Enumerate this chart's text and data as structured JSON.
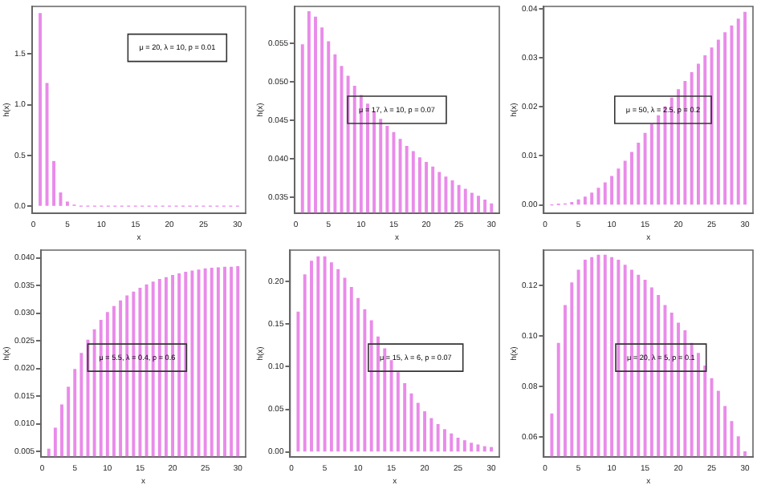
{
  "chart_data": [
    {
      "type": "bar",
      "xlabel": "x",
      "ylabel": "h(x)",
      "x": [
        1,
        2,
        3,
        4,
        5,
        6,
        7,
        8,
        9,
        10,
        11,
        12,
        13,
        14,
        15,
        16,
        17,
        18,
        19,
        20,
        21,
        22,
        23,
        24,
        25,
        26,
        27,
        28,
        29,
        30
      ],
      "series": [
        {
          "color": "#e98be9",
          "values": [
            1.9,
            1.21,
            0.44,
            0.13,
            0.04,
            0.01,
            0,
            0,
            0,
            0,
            0,
            0,
            0,
            0,
            0,
            0,
            0,
            0,
            0,
            0,
            0,
            0,
            0,
            0,
            0,
            0,
            0,
            0,
            0,
            0
          ]
        }
      ],
      "xlim": [
        -0.2,
        31.2
      ],
      "xticks": [
        0,
        5,
        10,
        15,
        20,
        25,
        30
      ],
      "ylim": [
        -0.07,
        1.97
      ],
      "yticks": [
        {
          "value": 0,
          "label": "0.0"
        },
        0.5,
        {
          "value": 1,
          "label": "1.0"
        },
        1.5
      ],
      "annotations": [
        "μ = 20, λ = 10, p = 0.01"
      ],
      "grid": false
    },
    {
      "type": "bar",
      "xlabel": "x",
      "ylabel": "h(x)",
      "x": [
        1,
        2,
        3,
        4,
        5,
        6,
        7,
        8,
        9,
        10,
        11,
        12,
        13,
        14,
        15,
        16,
        17,
        18,
        19,
        20,
        21,
        22,
        23,
        24,
        25,
        26,
        27,
        28,
        29,
        30
      ],
      "series": [
        {
          "color": "#e98be9",
          "values": [
            0.0548,
            0.0591,
            0.0584,
            0.057,
            0.0552,
            0.0535,
            0.052,
            0.0507,
            0.0494,
            0.0482,
            0.0471,
            0.0461,
            0.0451,
            0.0442,
            0.0434,
            0.0425,
            0.0416,
            0.0409,
            0.0401,
            0.0395,
            0.0389,
            0.0382,
            0.0376,
            0.0371,
            0.0365,
            0.036,
            0.0355,
            0.0351,
            0.0346,
            0.0341
          ]
        }
      ],
      "xlim": [
        -0.2,
        31.2
      ],
      "xticks": [
        0,
        5,
        10,
        15,
        20,
        25,
        30
      ],
      "ylim": [
        0.0329,
        0.0598
      ],
      "yticks": [
        {
          "value": 0.035,
          "label": "0.035"
        },
        {
          "value": 0.04,
          "label": "0.040"
        },
        {
          "value": 0.045,
          "label": "0.045"
        },
        {
          "value": 0.05,
          "label": "0.050"
        },
        {
          "value": 0.055,
          "label": "0.055"
        }
      ],
      "annotations": [
        "μ = 17, λ = 10, p = 0.07"
      ],
      "grid": false
    },
    {
      "type": "bar",
      "xlabel": "x",
      "ylabel": "h(x)",
      "x": [
        1,
        2,
        3,
        4,
        5,
        6,
        7,
        8,
        9,
        10,
        11,
        12,
        13,
        14,
        15,
        16,
        17,
        18,
        19,
        20,
        21,
        22,
        23,
        24,
        25,
        26,
        27,
        28,
        29,
        30
      ],
      "series": [
        {
          "color": "#e98be9",
          "values": [
            0,
            0.0001,
            0.0002,
            0.0005,
            0.001,
            0.0016,
            0.0024,
            0.0034,
            0.0045,
            0.0058,
            0.0073,
            0.0089,
            0.0107,
            0.0126,
            0.0146,
            0.0164,
            0.0182,
            0.02,
            0.0218,
            0.0235,
            0.0252,
            0.027,
            0.0287,
            0.0304,
            0.032,
            0.0336,
            0.0351,
            0.0365,
            0.0379,
            0.0393
          ]
        }
      ],
      "xlim": [
        -0.2,
        31.2
      ],
      "xticks": [
        0,
        5,
        10,
        15,
        20,
        25,
        30
      ],
      "ylim": [
        -0.0017,
        0.0405
      ],
      "yticks": [
        {
          "value": 0,
          "label": "0.00"
        },
        {
          "value": 0.01,
          "label": "0.01"
        },
        {
          "value": 0.02,
          "label": "0.02"
        },
        {
          "value": 0.03,
          "label": "0.03"
        },
        {
          "value": 0.04,
          "label": "0.04"
        }
      ],
      "annotations": [
        "μ = 50, λ = 2.5, p = 0.2"
      ],
      "grid": false
    },
    {
      "type": "bar",
      "xlabel": "x",
      "ylabel": "h(x)",
      "x": [
        1,
        2,
        3,
        4,
        5,
        6,
        7,
        8,
        9,
        10,
        11,
        12,
        13,
        14,
        15,
        16,
        17,
        18,
        19,
        20,
        21,
        22,
        23,
        24,
        25,
        26,
        27,
        28,
        29,
        30
      ],
      "series": [
        {
          "color": "#e98be9",
          "values": [
            0.0054,
            0.0092,
            0.0134,
            0.0166,
            0.0198,
            0.0227,
            0.0251,
            0.027,
            0.0287,
            0.0301,
            0.0312,
            0.0322,
            0.0331,
            0.0338,
            0.0345,
            0.0351,
            0.0356,
            0.0361,
            0.0364,
            0.0368,
            0.0371,
            0.0374,
            0.0376,
            0.0378,
            0.038,
            0.0381,
            0.0382,
            0.0383,
            0.0383,
            0.0384
          ]
        }
      ],
      "xlim": [
        -0.2,
        31.2
      ],
      "xticks": [
        0,
        5,
        10,
        15,
        20,
        25,
        30
      ],
      "ylim": [
        0.004,
        0.0414
      ],
      "yticks": [
        {
          "value": 0.005,
          "label": "0.005"
        },
        {
          "value": 0.01,
          "label": "0.010"
        },
        {
          "value": 0.015,
          "label": "0.015"
        },
        {
          "value": 0.02,
          "label": "0.020"
        },
        {
          "value": 0.025,
          "label": "0.025"
        },
        {
          "value": 0.03,
          "label": "0.030"
        },
        {
          "value": 0.035,
          "label": "0.035"
        },
        {
          "value": 0.04,
          "label": "0.040"
        }
      ],
      "annotations": [
        "μ = 5.5, λ = 0.4, p = 0.6"
      ],
      "grid": false
    },
    {
      "type": "bar",
      "xlabel": "x",
      "ylabel": "h(x)",
      "x": [
        1,
        2,
        3,
        4,
        5,
        6,
        7,
        8,
        9,
        10,
        11,
        12,
        13,
        14,
        15,
        16,
        17,
        18,
        19,
        20,
        21,
        22,
        23,
        24,
        25,
        26,
        27,
        28,
        29,
        30
      ],
      "series": [
        {
          "color": "#e98be9",
          "values": [
            0.164,
            0.208,
            0.224,
            0.229,
            0.229,
            0.222,
            0.214,
            0.204,
            0.193,
            0.18,
            0.167,
            0.154,
            0.135,
            0.121,
            0.107,
            0.093,
            0.08,
            0.068,
            0.057,
            0.047,
            0.039,
            0.032,
            0.026,
            0.021,
            0.016,
            0.013,
            0.01,
            0.008,
            0.006,
            0.005
          ]
        }
      ],
      "xlim": [
        -0.2,
        31.2
      ],
      "xticks": [
        0,
        5,
        10,
        15,
        20,
        25,
        30
      ],
      "ylim": [
        -0.006,
        0.237
      ],
      "yticks": [
        {
          "value": 0,
          "label": "0.00"
        },
        {
          "value": 0.05,
          "label": "0.05"
        },
        {
          "value": 0.1,
          "label": "0.10"
        },
        {
          "value": 0.15,
          "label": "0.15"
        },
        {
          "value": 0.2,
          "label": "0.20"
        }
      ],
      "annotations": [
        "μ = 15, λ = 6, p = 0.07"
      ],
      "grid": false
    },
    {
      "type": "bar",
      "xlabel": "x",
      "ylabel": "h(x)",
      "x": [
        1,
        2,
        3,
        4,
        5,
        6,
        7,
        8,
        9,
        10,
        11,
        12,
        13,
        14,
        15,
        16,
        17,
        18,
        19,
        20,
        21,
        22,
        23,
        24,
        25,
        26,
        27,
        28,
        29,
        30
      ],
      "series": [
        {
          "color": "#e98be9",
          "values": [
            0.069,
            0.097,
            0.112,
            0.121,
            0.126,
            0.13,
            0.131,
            0.132,
            0.132,
            0.131,
            0.13,
            0.128,
            0.126,
            0.124,
            0.122,
            0.119,
            0.116,
            0.112,
            0.109,
            0.105,
            0.102,
            0.097,
            0.093,
            0.088,
            0.083,
            0.078,
            0.072,
            0.066,
            0.06,
            0.054
          ]
        }
      ],
      "xlim": [
        -0.2,
        31.2
      ],
      "xticks": [
        0,
        5,
        10,
        15,
        20,
        25,
        30
      ],
      "ylim": [
        0.052,
        0.134
      ],
      "yticks": [
        {
          "value": 0.06,
          "label": "0.06"
        },
        {
          "value": 0.08,
          "label": "0.08"
        },
        {
          "value": 0.1,
          "label": "0.10"
        },
        {
          "value": 0.12,
          "label": "0.12"
        }
      ],
      "annotations": [
        "μ = 20, λ = 5, p = 0.1"
      ],
      "grid": false
    }
  ]
}
